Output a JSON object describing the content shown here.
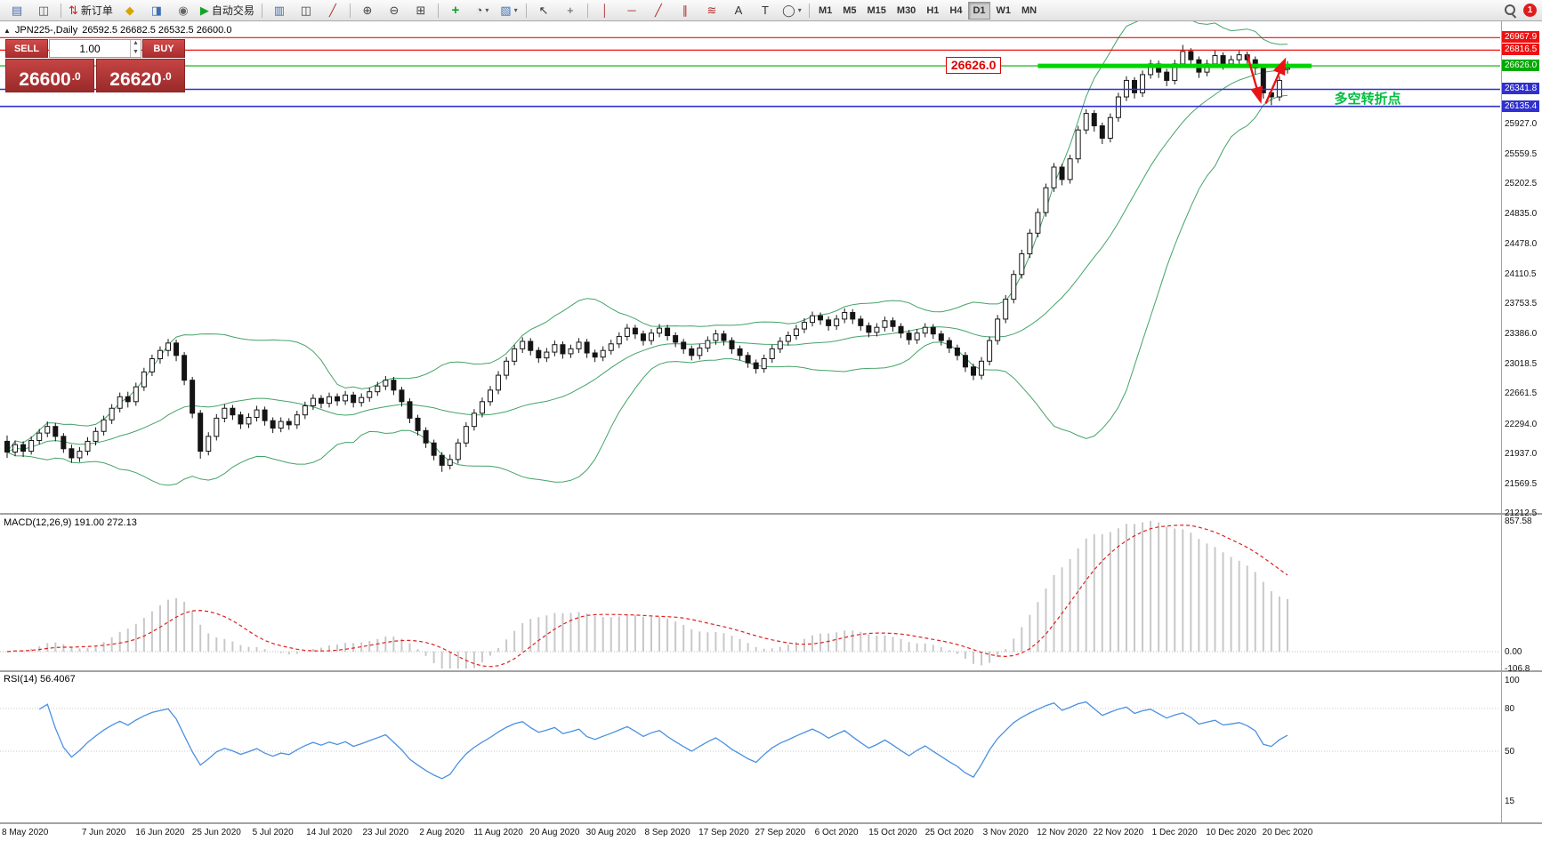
{
  "toolbar": {
    "notification_count": "1",
    "timeframes": [
      "M1",
      "M5",
      "M15",
      "M30",
      "H1",
      "H4",
      "D1",
      "W1",
      "MN"
    ],
    "active_timeframe": "D1",
    "groups": [
      {
        "items": [
          {
            "name": "new-chart-icon",
            "glyph": "▤",
            "color": "#4a6da8"
          },
          {
            "name": "profiles-icon",
            "glyph": "◫",
            "color": "#555555"
          }
        ]
      },
      {
        "items": [
          {
            "name": "new-order-button",
            "glyph": "⇅",
            "color": "#cc2222",
            "label": "新订单"
          },
          {
            "name": "metaeditor-icon",
            "glyph": "◆",
            "color": "#d9a400"
          },
          {
            "name": "terminal-icon",
            "glyph": "◨",
            "color": "#3d6fb4"
          },
          {
            "name": "strategy-tester-icon",
            "glyph": "◉",
            "color": "#666666"
          },
          {
            "name": "auto-trading-button",
            "glyph": "▶",
            "color": "#15a22b",
            "label": "自动交易"
          }
        ]
      },
      {
        "items": [
          {
            "name": "bar-chart-icon",
            "glyph": "▥",
            "color": "#3d6fb4"
          },
          {
            "name": "candlestick-chart-icon",
            "glyph": "◫",
            "color": "#444444"
          },
          {
            "name": "line-chart-icon",
            "glyph": "╱",
            "color": "#b03030"
          }
        ]
      },
      {
        "items": [
          {
            "name": "zoom-in-icon",
            "glyph": "⊕",
            "color": "#444444"
          },
          {
            "name": "zoom-out-icon",
            "glyph": "⊖",
            "color": "#444444"
          },
          {
            "name": "tile-windows-icon",
            "glyph": "⊞",
            "color": "#444444"
          }
        ]
      },
      {
        "items": [
          {
            "name": "indicators-icon",
            "glyph": "+",
            "color": "#14a02a"
          },
          {
            "name": "periods-icon",
            "glyph": "◔",
            "color": "#444444",
            "dropdown": true
          },
          {
            "name": "templates-icon",
            "glyph": "▧",
            "color": "#3d6fb4",
            "dropdown": true
          }
        ]
      },
      {
        "items": [
          {
            "name": "cursor-icon",
            "glyph": "↖",
            "color": "#333333"
          },
          {
            "name": "crosshair-icon",
            "glyph": "+",
            "color": "#555555"
          }
        ]
      },
      {
        "items": [
          {
            "name": "vertical-line-icon",
            "glyph": "│",
            "color": "#b03030"
          },
          {
            "name": "horizontal-line-icon",
            "glyph": "─",
            "color": "#b03030"
          },
          {
            "name": "trendline-icon",
            "glyph": "╱",
            "color": "#b03030"
          },
          {
            "name": "channel-icon",
            "glyph": "∥",
            "color": "#b03030"
          },
          {
            "name": "fibonacci-icon",
            "glyph": "≋",
            "color": "#b03030"
          },
          {
            "name": "text-icon",
            "glyph": "A",
            "color": "#333333"
          },
          {
            "name": "label-icon",
            "glyph": "T",
            "color": "#333333"
          },
          {
            "name": "shapes-icon",
            "glyph": "◯",
            "color": "#444444",
            "dropdown": true
          }
        ]
      }
    ]
  },
  "chart": {
    "collapse_marker": "▲",
    "symbol_title": "JPN225-,Daily",
    "ohlc_text": "26592.5 26682.5 26532.5 26600.0",
    "trade_panel": {
      "sell_label": "SELL",
      "buy_label": "BUY",
      "lot_size": "1.00",
      "sell_price": "26600.0",
      "buy_price": "26620.0"
    }
  },
  "chart_data": {
    "type": "candlestick",
    "symbol": "JPN225-",
    "timeframe": "Daily",
    "ohlc_current": {
      "open": 26592.5,
      "high": 26682.5,
      "low": 26532.5,
      "close": 26600.0
    },
    "price_axis_ticks": [
      25927.0,
      25559.5,
      25202.5,
      24835.0,
      24478.0,
      24110.5,
      23753.5,
      23386.0,
      23018.5,
      22661.5,
      22294.0,
      21937.0,
      21569.5,
      21212.5
    ],
    "levels": [
      {
        "value": 26967.9,
        "color": "#ee1111",
        "line_width": 1.2
      },
      {
        "value": 26816.5,
        "color": "#ee1111",
        "line_width": 1.2
      },
      {
        "value": 26626.0,
        "color": "#00aa00",
        "line_width": 1.2
      },
      {
        "value": 26341.8,
        "color": "#3030cf",
        "line_width": 1.6
      },
      {
        "value": 26135.4,
        "color": "#3030cf",
        "line_width": 1.6
      }
    ],
    "thick_segment": {
      "value": 26626.0,
      "from_candle": 128,
      "to_candle": 162,
      "color": "#00d500",
      "line_width": 5
    },
    "x_labels": [
      "8 May 2020",
      "7 Jun 2020",
      "16 Jun 2020",
      "25 Jun 2020",
      "5 Jul 2020",
      "14 Jul 2020",
      "23 Jul 2020",
      "2 Aug 2020",
      "11 Aug 2020",
      "20 Aug 2020",
      "30 Aug 2020",
      "8 Sep 2020",
      "17 Sep 2020",
      "27 Sep 2020",
      "6 Oct 2020",
      "15 Oct 2020",
      "25 Oct 2020",
      "3 Nov 2020",
      "12 Nov 2020",
      "22 Nov 2020",
      "1 Dec 2020",
      "10 Dec 2020",
      "20 Dec 2020"
    ],
    "x_label_indices": [
      0,
      12,
      19,
      26,
      33,
      40,
      47,
      54,
      61,
      68,
      75,
      82,
      89,
      96,
      103,
      110,
      117,
      124,
      131,
      138,
      145,
      152,
      159
    ],
    "indicators": {
      "bollinger": {
        "label": "Bollinger Bands(20,2)",
        "color": "#44a368"
      },
      "macd": {
        "label": "MACD(12,26,9) 191.00 272.13",
        "axis_values": [
          857.58,
          0,
          -106.8
        ],
        "axis_labels": [
          "857.58",
          "0.00",
          "-106.8"
        ],
        "histogram_color": "#c8c8c8",
        "signal_color": "#e02020"
      },
      "rsi": {
        "label": "RSI(14) 56.4067",
        "axis_values": [
          100,
          80,
          50,
          15
        ],
        "levels": [
          80,
          50
        ],
        "color": "#4a90e2"
      }
    },
    "annotations": {
      "price_label": {
        "text": "26626.0",
        "candle": 117,
        "price": 26626.0,
        "color": "#e00000"
      },
      "turning_point": {
        "text": "多空转折点",
        "candle": 164.8,
        "price": 26245,
        "color": "#00bf3f"
      },
      "arrows": {
        "color": "#e81414",
        "segments": [
          {
            "from": [
              154,
              26760
            ],
            "to": [
              155.6,
              26215
            ]
          },
          {
            "from": [
              156.3,
              26170
            ],
            "to": [
              158.6,
              26680
            ]
          }
        ]
      }
    },
    "candles": [
      [
        22080,
        22150,
        21880,
        21950
      ],
      [
        21950,
        22090,
        21900,
        22040
      ],
      [
        22040,
        22080,
        21890,
        21960
      ],
      [
        21960,
        22140,
        21920,
        22090
      ],
      [
        22090,
        22230,
        22040,
        22180
      ],
      [
        22180,
        22320,
        22130,
        22260
      ],
      [
        22260,
        22300,
        22080,
        22140
      ],
      [
        22140,
        22180,
        21940,
        21990
      ],
      [
        21990,
        22040,
        21820,
        21880
      ],
      [
        21880,
        22010,
        21830,
        21960
      ],
      [
        21960,
        22130,
        21910,
        22080
      ],
      [
        22080,
        22250,
        22030,
        22200
      ],
      [
        22200,
        22390,
        22150,
        22340
      ],
      [
        22340,
        22530,
        22290,
        22480
      ],
      [
        22480,
        22670,
        22430,
        22620
      ],
      [
        22620,
        22680,
        22490,
        22560
      ],
      [
        22560,
        22790,
        22510,
        22740
      ],
      [
        22740,
        22970,
        22690,
        22920
      ],
      [
        22920,
        23130,
        22870,
        23080
      ],
      [
        23080,
        23230,
        23020,
        23180
      ],
      [
        23180,
        23320,
        23110,
        23270
      ],
      [
        23270,
        23310,
        23050,
        23120
      ],
      [
        23120,
        23160,
        22760,
        22820
      ],
      [
        22820,
        22860,
        22360,
        22420
      ],
      [
        22420,
        22460,
        21870,
        21960
      ],
      [
        21960,
        22190,
        21910,
        22140
      ],
      [
        22140,
        22410,
        22090,
        22360
      ],
      [
        22360,
        22530,
        22310,
        22480
      ],
      [
        22480,
        22520,
        22340,
        22400
      ],
      [
        22400,
        22440,
        22230,
        22290
      ],
      [
        22290,
        22420,
        22240,
        22370
      ],
      [
        22370,
        22510,
        22320,
        22460
      ],
      [
        22460,
        22500,
        22270,
        22330
      ],
      [
        22330,
        22370,
        22180,
        22240
      ],
      [
        22240,
        22370,
        22190,
        22320
      ],
      [
        22320,
        22360,
        22220,
        22280
      ],
      [
        22280,
        22450,
        22230,
        22400
      ],
      [
        22400,
        22560,
        22350,
        22510
      ],
      [
        22510,
        22650,
        22460,
        22600
      ],
      [
        22600,
        22640,
        22480,
        22540
      ],
      [
        22540,
        22670,
        22490,
        22620
      ],
      [
        22620,
        22660,
        22510,
        22570
      ],
      [
        22570,
        22690,
        22520,
        22640
      ],
      [
        22640,
        22680,
        22490,
        22550
      ],
      [
        22550,
        22660,
        22500,
        22610
      ],
      [
        22610,
        22730,
        22560,
        22680
      ],
      [
        22680,
        22800,
        22630,
        22750
      ],
      [
        22750,
        22870,
        22700,
        22820
      ],
      [
        22820,
        22860,
        22640,
        22700
      ],
      [
        22700,
        22740,
        22500,
        22560
      ],
      [
        22560,
        22600,
        22300,
        22360
      ],
      [
        22360,
        22400,
        22150,
        22210
      ],
      [
        22210,
        22250,
        22000,
        22060
      ],
      [
        22060,
        22100,
        21850,
        21910
      ],
      [
        21910,
        21950,
        21710,
        21790
      ],
      [
        21790,
        21920,
        21740,
        21860
      ],
      [
        21860,
        22110,
        21810,
        22060
      ],
      [
        22060,
        22310,
        22010,
        22260
      ],
      [
        22260,
        22470,
        22210,
        22420
      ],
      [
        22420,
        22610,
        22370,
        22560
      ],
      [
        22560,
        22750,
        22510,
        22700
      ],
      [
        22700,
        22930,
        22650,
        22880
      ],
      [
        22880,
        23100,
        22830,
        23050
      ],
      [
        23050,
        23250,
        23000,
        23200
      ],
      [
        23200,
        23340,
        23150,
        23290
      ],
      [
        23290,
        23330,
        23120,
        23180
      ],
      [
        23180,
        23220,
        23030,
        23090
      ],
      [
        23090,
        23210,
        23040,
        23160
      ],
      [
        23160,
        23300,
        23110,
        23250
      ],
      [
        23250,
        23290,
        23080,
        23140
      ],
      [
        23140,
        23250,
        23090,
        23200
      ],
      [
        23200,
        23330,
        23150,
        23280
      ],
      [
        23280,
        23320,
        23090,
        23150
      ],
      [
        23150,
        23190,
        23040,
        23100
      ],
      [
        23100,
        23230,
        23050,
        23180
      ],
      [
        23180,
        23310,
        23130,
        23260
      ],
      [
        23260,
        23400,
        23210,
        23350
      ],
      [
        23350,
        23500,
        23300,
        23450
      ],
      [
        23450,
        23490,
        23320,
        23380
      ],
      [
        23380,
        23420,
        23240,
        23300
      ],
      [
        23300,
        23440,
        23250,
        23390
      ],
      [
        23390,
        23500,
        23340,
        23450
      ],
      [
        23450,
        23490,
        23300,
        23360
      ],
      [
        23360,
        23400,
        23220,
        23280
      ],
      [
        23280,
        23320,
        23140,
        23200
      ],
      [
        23200,
        23240,
        23060,
        23120
      ],
      [
        23120,
        23260,
        23070,
        23210
      ],
      [
        23210,
        23350,
        23160,
        23300
      ],
      [
        23300,
        23430,
        23250,
        23380
      ],
      [
        23380,
        23420,
        23240,
        23300
      ],
      [
        23300,
        23340,
        23140,
        23200
      ],
      [
        23200,
        23240,
        23060,
        23120
      ],
      [
        23120,
        23160,
        22970,
        23030
      ],
      [
        23030,
        23070,
        22900,
        22960
      ],
      [
        22960,
        23130,
        22910,
        23080
      ],
      [
        23080,
        23250,
        23030,
        23200
      ],
      [
        23200,
        23340,
        23150,
        23290
      ],
      [
        23290,
        23410,
        23240,
        23360
      ],
      [
        23360,
        23490,
        23310,
        23440
      ],
      [
        23440,
        23570,
        23390,
        23520
      ],
      [
        23520,
        23650,
        23470,
        23600
      ],
      [
        23600,
        23640,
        23490,
        23550
      ],
      [
        23550,
        23590,
        23420,
        23480
      ],
      [
        23480,
        23610,
        23430,
        23560
      ],
      [
        23560,
        23690,
        23510,
        23640
      ],
      [
        23640,
        23680,
        23500,
        23560
      ],
      [
        23560,
        23600,
        23420,
        23480
      ],
      [
        23480,
        23520,
        23340,
        23400
      ],
      [
        23400,
        23510,
        23350,
        23460
      ],
      [
        23460,
        23590,
        23410,
        23540
      ],
      [
        23540,
        23580,
        23410,
        23470
      ],
      [
        23470,
        23510,
        23330,
        23390
      ],
      [
        23390,
        23430,
        23250,
        23310
      ],
      [
        23310,
        23440,
        23260,
        23390
      ],
      [
        23390,
        23510,
        23340,
        23460
      ],
      [
        23460,
        23500,
        23320,
        23380
      ],
      [
        23380,
        23420,
        23240,
        23300
      ],
      [
        23300,
        23340,
        23150,
        23210
      ],
      [
        23210,
        23250,
        23060,
        23120
      ],
      [
        23120,
        23160,
        22920,
        22980
      ],
      [
        22980,
        23020,
        22820,
        22880
      ],
      [
        22880,
        23100,
        22830,
        23050
      ],
      [
        23050,
        23350,
        23000,
        23300
      ],
      [
        23300,
        23610,
        23250,
        23560
      ],
      [
        23560,
        23850,
        23510,
        23800
      ],
      [
        23800,
        24150,
        23750,
        24100
      ],
      [
        24100,
        24400,
        24050,
        24350
      ],
      [
        24350,
        24650,
        24300,
        24600
      ],
      [
        24600,
        24900,
        24550,
        24850
      ],
      [
        24850,
        25200,
        24800,
        25150
      ],
      [
        25150,
        25450,
        25100,
        25400
      ],
      [
        25400,
        25440,
        25180,
        25250
      ],
      [
        25250,
        25550,
        25200,
        25500
      ],
      [
        25500,
        25900,
        25450,
        25850
      ],
      [
        25850,
        26100,
        25800,
        26050
      ],
      [
        26050,
        26090,
        25830,
        25900
      ],
      [
        25900,
        25940,
        25680,
        25750
      ],
      [
        25750,
        26050,
        25700,
        26000
      ],
      [
        26000,
        26300,
        25950,
        26250
      ],
      [
        26250,
        26500,
        26200,
        26450
      ],
      [
        26450,
        26490,
        26230,
        26300
      ],
      [
        26300,
        26570,
        26250,
        26520
      ],
      [
        26520,
        26700,
        26470,
        26650
      ],
      [
        26650,
        26690,
        26480,
        26550
      ],
      [
        26550,
        26590,
        26380,
        26450
      ],
      [
        26450,
        26700,
        26400,
        26650
      ],
      [
        26650,
        26880,
        26600,
        26800
      ],
      [
        26800,
        26840,
        26630,
        26700
      ],
      [
        26700,
        26740,
        26480,
        26550
      ],
      [
        26550,
        26700,
        26500,
        26650
      ],
      [
        26650,
        26820,
        26600,
        26750
      ],
      [
        26750,
        26790,
        26580,
        26650
      ],
      [
        26650,
        26750,
        26600,
        26700
      ],
      [
        26700,
        26820,
        26650,
        26760
      ],
      [
        26760,
        26800,
        26630,
        26700
      ],
      [
        26700,
        26740,
        26520,
        26600
      ],
      [
        26600,
        26640,
        26230,
        26300
      ],
      [
        26300,
        26340,
        26150,
        26250
      ],
      [
        26250,
        26500,
        26200,
        26450
      ],
      [
        26592.5,
        26682.5,
        26532.5,
        26600.0
      ]
    ]
  }
}
